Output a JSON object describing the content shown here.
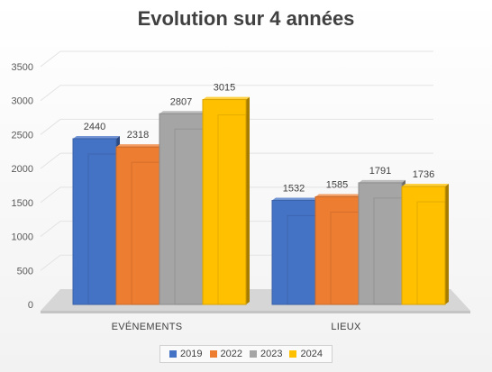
{
  "chart_data": {
    "type": "bar",
    "title": "Evolution sur 4 années",
    "categories": [
      "EVÉNEMENTS",
      "LIEUX"
    ],
    "series": [
      {
        "name": "2019",
        "values": [
          2440,
          1532
        ],
        "color": "#4472C4"
      },
      {
        "name": "2022",
        "values": [
          2318,
          1585
        ],
        "color": "#ED7D31"
      },
      {
        "name": "2023",
        "values": [
          2807,
          1791
        ],
        "color": "#A5A5A5"
      },
      {
        "name": "2024",
        "values": [
          3015,
          1736
        ],
        "color": "#FFC000"
      }
    ],
    "ylim": [
      0,
      3500
    ],
    "yticks": [
      0,
      500,
      1000,
      1500,
      2000,
      2500,
      3000,
      3500
    ],
    "grid": true,
    "legend_position": "bottom",
    "style": "3d-column"
  }
}
